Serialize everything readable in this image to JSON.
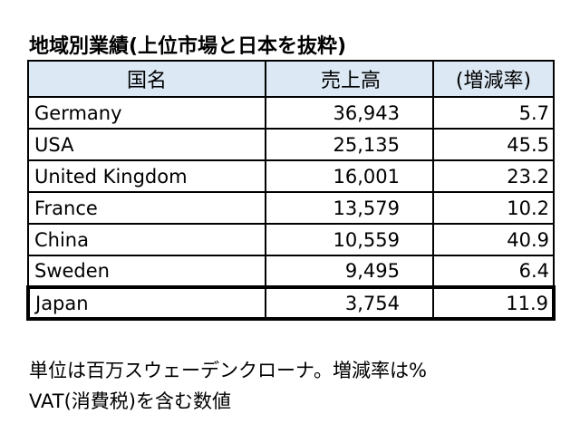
{
  "title": "地域別業績(上位市場と日本を抜粋)",
  "table": {
    "headers": [
      "国名",
      "売上高",
      "(増減率)"
    ],
    "rows": [
      {
        "country": "Germany",
        "sales": "36,943",
        "change": "5.7"
      },
      {
        "country": "USA",
        "sales": "25,135",
        "change": "45.5"
      },
      {
        "country": "United Kingdom",
        "sales": "16,001",
        "change": "23.2"
      },
      {
        "country": "France",
        "sales": "13,579",
        "change": "10.2"
      },
      {
        "country": "China",
        "sales": "10,559",
        "change": "40.9"
      },
      {
        "country": "Sweden",
        "sales": "9,495",
        "change": "6.4"
      },
      {
        "country": "Japan",
        "sales": "3,754",
        "change": "11.9"
      }
    ],
    "header_color": "#dce9f5"
  },
  "notes": [
    "単位は百万スウェーデンクローナ。増減率は%",
    "VAT(消費税)を含む数値"
  ]
}
